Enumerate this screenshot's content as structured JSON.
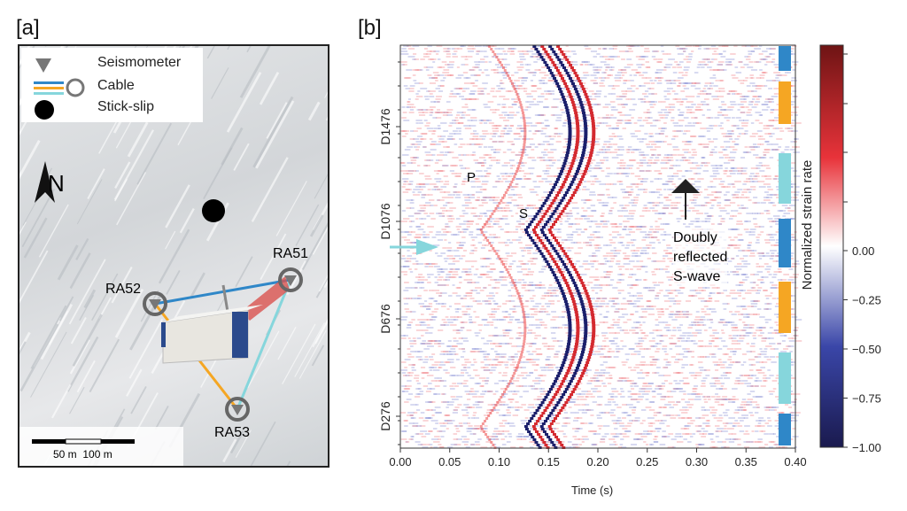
{
  "panel_a": {
    "label": "[a]",
    "legend": [
      {
        "icon": "seismometer-triangle",
        "label": "Seismometer"
      },
      {
        "icon": "cable-lines-circle",
        "label": "Cable"
      },
      {
        "icon": "black-dot",
        "label": "Stick-slip"
      }
    ],
    "north": "N",
    "stations": [
      "RA51",
      "RA52",
      "RA53"
    ],
    "scalebar": "50 m  100 m",
    "cable_colors": {
      "RA52-RA51": "#2f87c8",
      "RA52-RA53": "#f5a623",
      "RA51-RA53": "#86d6dc"
    }
  },
  "chart_data": {
    "type": "heatmap",
    "panel_label": "[b]",
    "xlabel": "Time (s)",
    "xlim": [
      0,
      0.4
    ],
    "xticks": [
      "0.00",
      "0.05",
      "0.10",
      "0.15",
      "0.20",
      "0.25",
      "0.30",
      "0.35",
      "0.40"
    ],
    "yticks": [
      "D1476",
      "D1076",
      "D676",
      "D276"
    ],
    "colorbar": {
      "label": "Normalized strain rate",
      "range": [
        -1,
        1
      ],
      "ticks": [
        "0.00",
        "−0.25",
        "−0.50",
        "−0.75",
        "−1.00"
      ],
      "colors": [
        "#1a1a4e",
        "#3a46a8",
        "#ffffff",
        "#e8333a",
        "#6e1414"
      ]
    },
    "annotations": [
      "P",
      "S",
      "Doubly\nreflected\nS-wave"
    ],
    "segment_colors": [
      "#2f87c8",
      "#f5a623",
      "#86d6dc",
      "#2f87c8",
      "#f5a623",
      "#86d6dc",
      "#2f87c8"
    ]
  }
}
